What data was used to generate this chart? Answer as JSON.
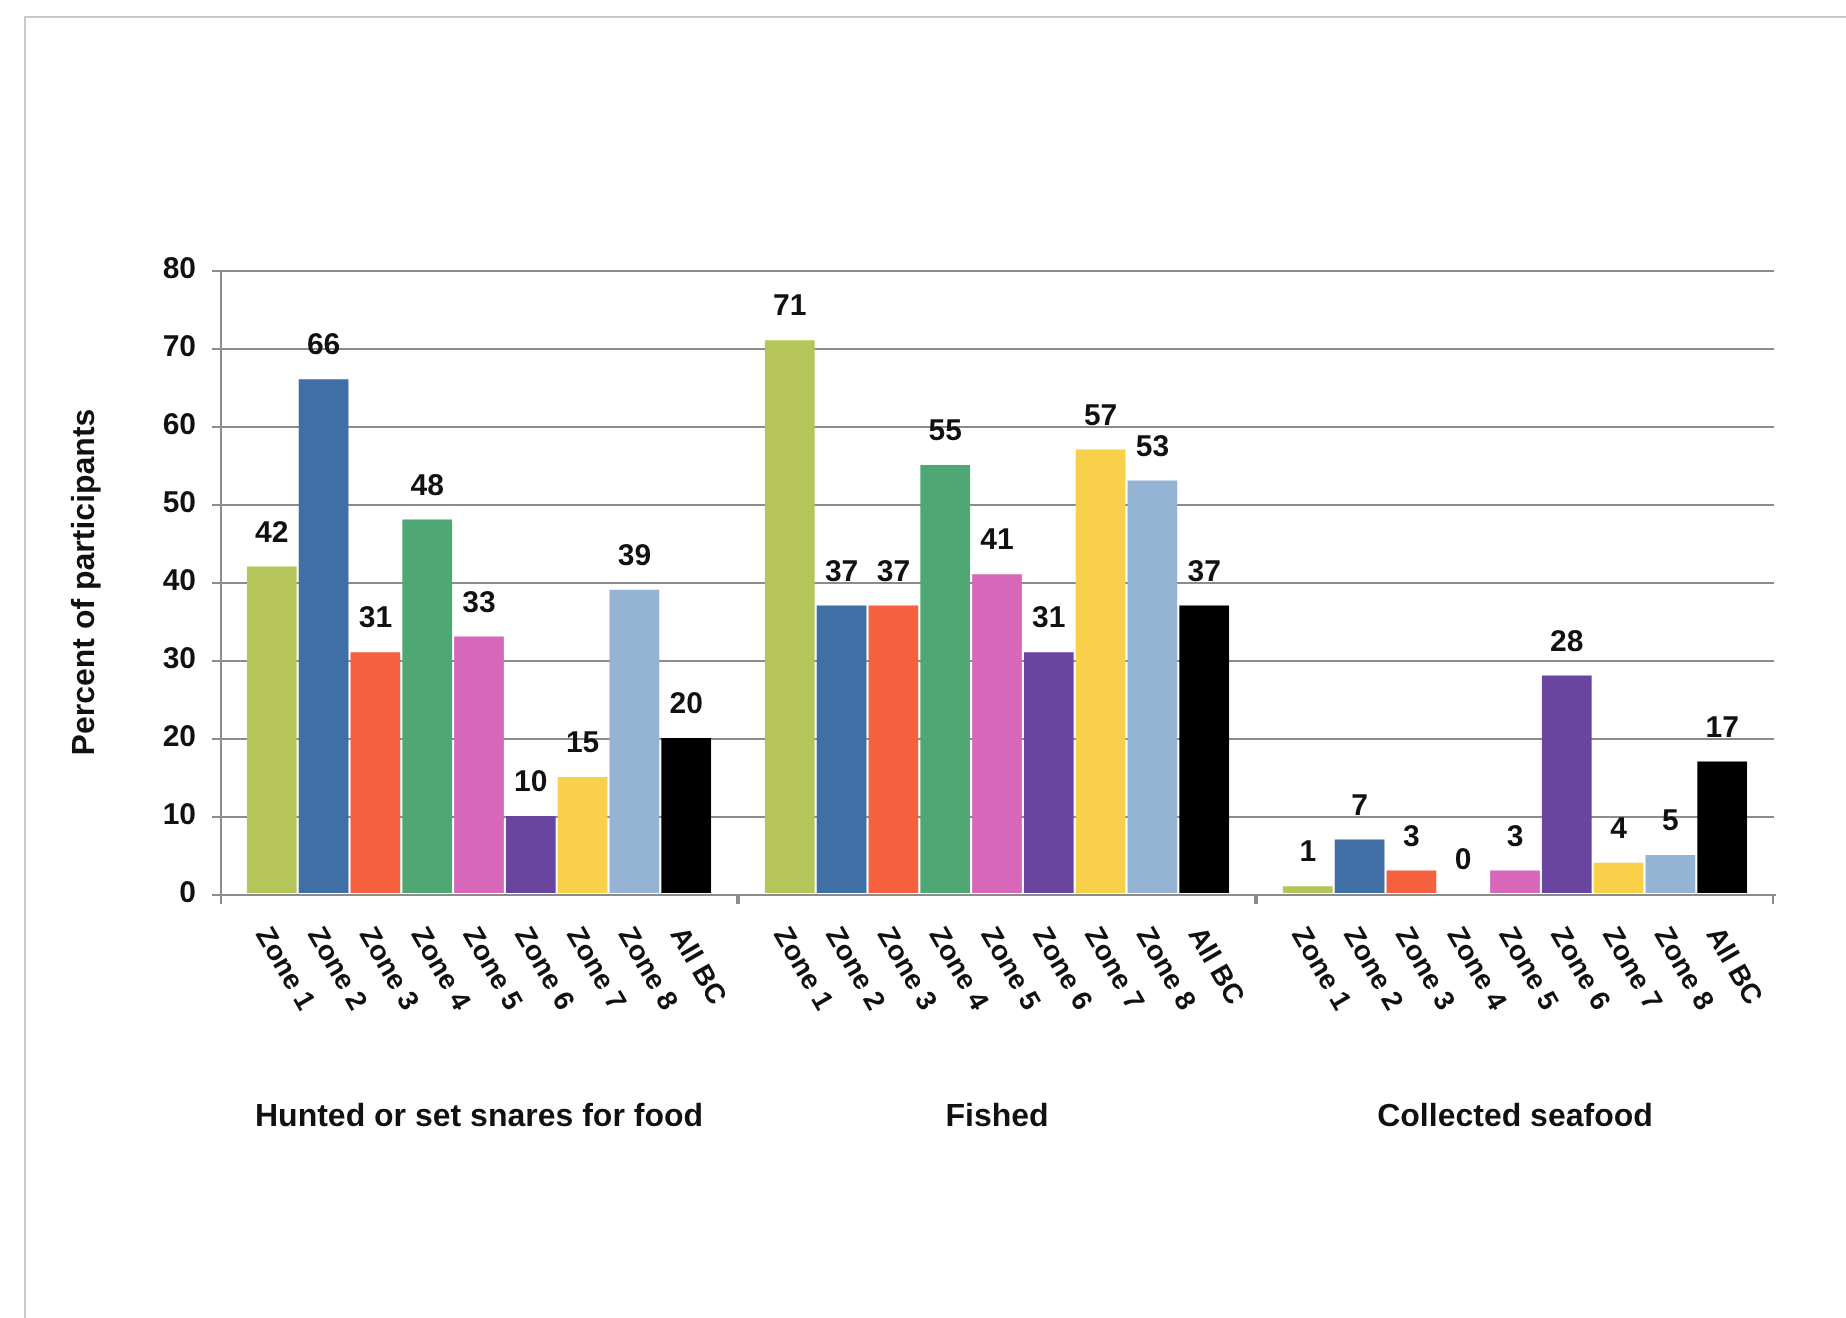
{
  "chart_data": [
    {
      "type": "bar",
      "xlabel": "Hunted or set snares for food",
      "ylabel": "Percent of participants",
      "categories": [
        "Zone 1",
        "Zone 2",
        "Zone 3",
        "Zone 4",
        "Zone 5",
        "Zone 6",
        "Zone 7",
        "Zone 8",
        "All BC"
      ],
      "values": [
        42,
        66,
        31,
        48,
        33,
        10,
        15,
        39,
        20
      ],
      "colors": [
        "#b5c55a",
        "#3f6fa5",
        "#f5613f",
        "#4fa874",
        "#d767b8",
        "#6a45a0",
        "#f8d04a",
        "#95b3d3",
        "#000000"
      ],
      "ylim": [
        0,
        80
      ],
      "yticks": [
        0,
        10,
        20,
        30,
        40,
        50,
        60,
        70,
        80
      ],
      "grid": "y",
      "data_labels": true
    },
    {
      "type": "bar",
      "xlabel": "Fished",
      "categories": [
        "Zone 1",
        "Zone 2",
        "Zone 3",
        "Zone 4",
        "Zone 5",
        "Zone 6",
        "Zone 7",
        "Zone 8",
        "All BC"
      ],
      "values": [
        71,
        37,
        37,
        55,
        41,
        31,
        57,
        53,
        37
      ],
      "colors": [
        "#b5c55a",
        "#3f6fa5",
        "#f5613f",
        "#4fa874",
        "#d767b8",
        "#6a45a0",
        "#f8d04a",
        "#95b3d3",
        "#000000"
      ],
      "ylim": [
        0,
        80
      ],
      "yticks": [
        0,
        10,
        20,
        30,
        40,
        50,
        60,
        70,
        80
      ],
      "grid": "y",
      "data_labels": true,
      "tick_labels": "x"
    },
    {
      "type": "bar",
      "xlabel": "Collected seafood",
      "categories": [
        "Zone 1",
        "Zone 2",
        "Zone 3",
        "Zone 4",
        "Zone 5",
        "Zone 6",
        "Zone 7",
        "Zone 8",
        "All BC"
      ],
      "values": [
        1,
        7,
        3,
        0,
        3,
        28,
        4,
        5,
        17
      ],
      "colors": [
        "#b5c55a",
        "#3f6fa5",
        "#f5613f",
        "#4fa874",
        "#d767b8",
        "#6a45a0",
        "#f8d04a",
        "#95b3d3",
        "#000000"
      ],
      "ylim": [
        0,
        80
      ],
      "yticks": [
        0,
        10,
        20,
        30,
        40,
        50,
        60,
        70,
        80
      ],
      "grid": "y",
      "data_labels": true,
      "tick_labels": "x"
    }
  ]
}
